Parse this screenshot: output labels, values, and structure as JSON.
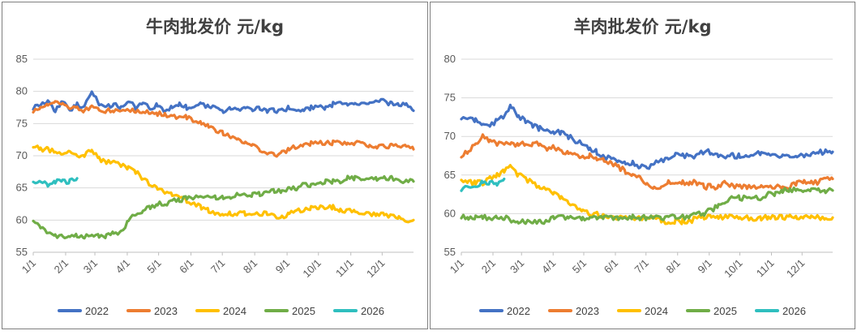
{
  "chart_data": [
    {
      "type": "line",
      "title": "牛肉批发价 元/kg",
      "xlabel": "",
      "ylabel": "",
      "ylim": [
        55,
        85
      ],
      "y_ticks": [
        "55",
        "60",
        "65",
        "70",
        "75",
        "80",
        "85"
      ],
      "x_ticks": [
        "1/1",
        "2/1",
        "3/1",
        "4/1",
        "5/1",
        "6/1",
        "7/1",
        "8/1",
        "9/1",
        "10/1",
        "11/1",
        "12/1"
      ],
      "grid": "horizontal",
      "legend_position": "bottom",
      "series": [
        {
          "name": "2022",
          "color": "#4472C4",
          "x": [
            1,
            8,
            15,
            22,
            29,
            36,
            43,
            50,
            57,
            64,
            71,
            78,
            85,
            92,
            99,
            106,
            113,
            120,
            127,
            134,
            141,
            148,
            155,
            162,
            169,
            176,
            183,
            190,
            197,
            204,
            211,
            218,
            225,
            232,
            239,
            246,
            253,
            260,
            267,
            274,
            281,
            288,
            295,
            302,
            309,
            316,
            323,
            330,
            337,
            344,
            351,
            358,
            365
          ],
          "values": [
            77.5,
            78.0,
            78.5,
            77.0,
            78.5,
            77.0,
            78.0,
            77.5,
            80.0,
            78.0,
            77.5,
            78.0,
            77.5,
            78.5,
            77.5,
            78.5,
            77.0,
            78.0,
            77.0,
            77.5,
            78.0,
            77.5,
            77.5,
            78.0,
            77.5,
            77.5,
            77.0,
            77.5,
            77.0,
            77.5,
            77.0,
            77.5,
            77.0,
            77.0,
            77.0,
            77.5,
            77.0,
            77.0,
            77.5,
            77.5,
            77.5,
            78.0,
            78.5,
            78.0,
            78.0,
            78.0,
            78.0,
            78.5,
            78.5,
            78.0,
            78.0,
            78.0,
            77.0
          ]
        },
        {
          "name": "2023",
          "color": "#ED7D31",
          "x": [
            1,
            8,
            15,
            22,
            29,
            36,
            43,
            50,
            57,
            64,
            71,
            78,
            85,
            92,
            99,
            106,
            113,
            120,
            127,
            134,
            141,
            148,
            155,
            162,
            169,
            176,
            183,
            190,
            197,
            204,
            211,
            218,
            225,
            232,
            239,
            246,
            253,
            260,
            267,
            274,
            281,
            288,
            295,
            302,
            309,
            316,
            323,
            330,
            337,
            344,
            351,
            358,
            365
          ],
          "values": [
            77.0,
            77.5,
            78.0,
            78.5,
            78.0,
            77.5,
            77.5,
            77.0,
            77.5,
            77.0,
            77.0,
            77.0,
            77.0,
            77.0,
            77.0,
            77.0,
            76.5,
            76.5,
            76.5,
            76.0,
            76.0,
            76.0,
            75.5,
            75.0,
            74.5,
            74.0,
            73.5,
            73.0,
            72.5,
            72.0,
            71.5,
            71.0,
            70.5,
            70.0,
            70.5,
            71.0,
            71.5,
            71.5,
            72.0,
            72.0,
            72.0,
            72.0,
            72.0,
            72.0,
            72.0,
            72.0,
            71.5,
            71.5,
            71.5,
            71.5,
            71.5,
            71.5,
            71.0
          ]
        },
        {
          "name": "2024",
          "color": "#FFC000",
          "x": [
            1,
            8,
            15,
            22,
            29,
            36,
            43,
            50,
            57,
            64,
            71,
            78,
            85,
            92,
            99,
            106,
            113,
            120,
            127,
            134,
            141,
            148,
            155,
            162,
            169,
            176,
            183,
            190,
            197,
            204,
            211,
            218,
            225,
            232,
            239,
            246,
            253,
            260,
            267,
            274,
            281,
            288,
            295,
            302,
            309,
            316,
            323,
            330,
            337,
            344,
            351,
            358,
            365
          ],
          "values": [
            71.5,
            71.0,
            71.0,
            70.5,
            70.5,
            70.5,
            70.0,
            70.0,
            71.0,
            69.5,
            69.0,
            69.0,
            68.5,
            68.0,
            67.5,
            66.5,
            65.5,
            65.0,
            64.5,
            64.0,
            63.5,
            63.0,
            62.5,
            62.0,
            61.5,
            61.0,
            61.0,
            61.0,
            61.0,
            61.0,
            61.0,
            61.0,
            61.0,
            60.5,
            60.5,
            61.0,
            61.5,
            61.5,
            62.0,
            62.0,
            62.0,
            62.0,
            61.5,
            61.5,
            61.5,
            61.0,
            61.0,
            61.0,
            61.0,
            60.5,
            60.5,
            60.0,
            60.0
          ]
        },
        {
          "name": "2025",
          "color": "#70AD47",
          "x": [
            1,
            8,
            15,
            22,
            29,
            36,
            43,
            50,
            57,
            64,
            71,
            78,
            85,
            92,
            99,
            106,
            113,
            120,
            127,
            134,
            141,
            148,
            155,
            162,
            169,
            176,
            183,
            190,
            197,
            204,
            211,
            218,
            225,
            232,
            239,
            246,
            253,
            260,
            267,
            274,
            281,
            288,
            295,
            302,
            309,
            316,
            323,
            330,
            337,
            344,
            351,
            358,
            365
          ],
          "values": [
            60.0,
            59.0,
            58.0,
            57.5,
            57.5,
            57.5,
            57.5,
            57.5,
            57.5,
            57.5,
            57.5,
            58.0,
            58.0,
            60.0,
            61.0,
            61.5,
            62.0,
            62.5,
            62.5,
            63.0,
            63.0,
            63.5,
            63.5,
            63.5,
            63.5,
            63.5,
            63.5,
            63.5,
            64.0,
            64.0,
            64.0,
            64.0,
            64.5,
            64.5,
            64.5,
            65.0,
            65.0,
            65.5,
            65.5,
            65.5,
            66.0,
            66.0,
            66.0,
            66.5,
            66.5,
            66.5,
            66.5,
            66.5,
            66.5,
            66.5,
            66.0,
            66.0,
            66.0
          ]
        },
        {
          "name": "2026",
          "color": "#2FBFBF",
          "x": [
            1,
            8,
            15,
            22,
            29,
            36,
            43
          ],
          "values": [
            66.0,
            66.0,
            65.5,
            66.0,
            66.0,
            66.0,
            66.5
          ]
        }
      ]
    },
    {
      "type": "line",
      "title": "羊肉批发价 元/kg",
      "xlabel": "",
      "ylabel": "",
      "ylim": [
        55,
        80
      ],
      "y_ticks": [
        "55",
        "60",
        "65",
        "70",
        "75",
        "80"
      ],
      "x_ticks": [
        "1/1",
        "2/1",
        "3/1",
        "4/1",
        "5/1",
        "6/1",
        "7/1",
        "8/1",
        "9/1",
        "10/1",
        "11/1",
        "12/1"
      ],
      "grid": "horizontal",
      "legend_position": "bottom",
      "series": [
        {
          "name": "2022",
          "color": "#4472C4",
          "x": [
            1,
            8,
            15,
            22,
            29,
            36,
            43,
            50,
            57,
            64,
            71,
            78,
            85,
            92,
            99,
            106,
            113,
            120,
            127,
            134,
            141,
            148,
            155,
            162,
            169,
            176,
            183,
            190,
            197,
            204,
            211,
            218,
            225,
            232,
            239,
            246,
            253,
            260,
            267,
            274,
            281,
            288,
            295,
            302,
            309,
            316,
            323,
            330,
            337,
            344,
            351,
            358,
            365
          ],
          "values": [
            72.5,
            72.5,
            72.0,
            71.5,
            71.5,
            72.0,
            72.5,
            74.0,
            72.5,
            72.0,
            71.5,
            71.0,
            71.0,
            70.5,
            70.5,
            70.0,
            69.5,
            69.0,
            68.5,
            68.0,
            67.5,
            67.0,
            67.0,
            66.5,
            66.5,
            66.0,
            66.0,
            66.5,
            67.0,
            67.0,
            67.5,
            67.5,
            67.5,
            67.5,
            68.0,
            68.0,
            67.5,
            67.5,
            67.5,
            67.5,
            67.5,
            67.5,
            68.0,
            68.0,
            67.5,
            67.5,
            67.5,
            67.5,
            67.5,
            67.5,
            68.0,
            68.0,
            68.0
          ]
        },
        {
          "name": "2023",
          "color": "#ED7D31",
          "x": [
            1,
            8,
            15,
            22,
            29,
            36,
            43,
            50,
            57,
            64,
            71,
            78,
            85,
            92,
            99,
            106,
            113,
            120,
            127,
            134,
            141,
            148,
            155,
            162,
            169,
            176,
            183,
            190,
            197,
            204,
            211,
            218,
            225,
            232,
            239,
            246,
            253,
            260,
            267,
            274,
            281,
            288,
            295,
            302,
            309,
            316,
            323,
            330,
            337,
            344,
            351,
            358,
            365
          ],
          "values": [
            67.5,
            68.0,
            69.0,
            70.0,
            69.5,
            69.0,
            69.0,
            69.0,
            69.0,
            69.0,
            69.0,
            69.0,
            68.5,
            68.5,
            68.0,
            68.0,
            67.5,
            67.5,
            67.5,
            67.0,
            67.0,
            66.5,
            66.0,
            65.5,
            65.0,
            64.5,
            64.0,
            63.5,
            63.5,
            64.0,
            64.0,
            64.0,
            64.0,
            64.0,
            63.5,
            63.5,
            63.5,
            64.0,
            63.5,
            63.5,
            63.5,
            63.5,
            63.5,
            63.5,
            63.5,
            63.5,
            63.5,
            64.0,
            64.0,
            64.0,
            64.0,
            64.5,
            64.5
          ]
        },
        {
          "name": "2024",
          "color": "#FFC000",
          "x": [
            1,
            8,
            15,
            22,
            29,
            36,
            43,
            50,
            57,
            64,
            71,
            78,
            85,
            92,
            99,
            106,
            113,
            120,
            127,
            134,
            141,
            148,
            155,
            162,
            169,
            176,
            183,
            190,
            197,
            204,
            211,
            218,
            225,
            232,
            239,
            246,
            253,
            260,
            267,
            274,
            281,
            288,
            295,
            302,
            309,
            316,
            323,
            330,
            337,
            344,
            351,
            358,
            365
          ],
          "values": [
            64.5,
            64.0,
            64.0,
            64.0,
            64.5,
            65.0,
            65.5,
            66.0,
            65.0,
            64.5,
            64.0,
            63.5,
            63.0,
            62.5,
            62.0,
            61.5,
            61.0,
            60.5,
            60.0,
            60.0,
            59.5,
            59.5,
            59.5,
            59.5,
            59.5,
            59.5,
            59.5,
            59.5,
            59.0,
            59.0,
            59.0,
            59.0,
            59.0,
            59.5,
            59.5,
            59.5,
            59.5,
            59.5,
            59.5,
            59.5,
            59.5,
            59.0,
            59.5,
            59.5,
            59.5,
            59.5,
            59.5,
            59.5,
            59.5,
            59.5,
            59.5,
            59.5,
            59.5
          ]
        },
        {
          "name": "2025",
          "color": "#70AD47",
          "x": [
            1,
            8,
            15,
            22,
            29,
            36,
            43,
            50,
            57,
            64,
            71,
            78,
            85,
            92,
            99,
            106,
            113,
            120,
            127,
            134,
            141,
            148,
            155,
            162,
            169,
            176,
            183,
            190,
            197,
            204,
            211,
            218,
            225,
            232,
            239,
            246,
            253,
            260,
            267,
            274,
            281,
            288,
            295,
            302,
            309,
            316,
            323,
            330,
            337,
            344,
            351,
            358,
            365
          ],
          "values": [
            59.5,
            59.5,
            59.5,
            59.5,
            59.5,
            59.5,
            59.5,
            59.0,
            59.0,
            59.0,
            59.0,
            59.0,
            59.0,
            59.5,
            59.5,
            59.5,
            59.5,
            59.5,
            59.5,
            59.5,
            59.5,
            59.5,
            59.5,
            59.5,
            59.5,
            59.5,
            59.5,
            59.5,
            59.5,
            59.5,
            59.5,
            59.5,
            59.5,
            60.0,
            60.0,
            60.5,
            61.0,
            61.5,
            62.0,
            62.0,
            62.0,
            62.0,
            62.0,
            62.5,
            62.5,
            63.0,
            63.0,
            63.0,
            63.0,
            63.0,
            63.0,
            63.0,
            63.0
          ]
        },
        {
          "name": "2026",
          "color": "#2FBFBF",
          "x": [
            1,
            8,
            15,
            22,
            29,
            36,
            43
          ],
          "values": [
            63.0,
            63.5,
            63.5,
            64.0,
            64.0,
            64.0,
            64.5
          ]
        }
      ]
    }
  ]
}
